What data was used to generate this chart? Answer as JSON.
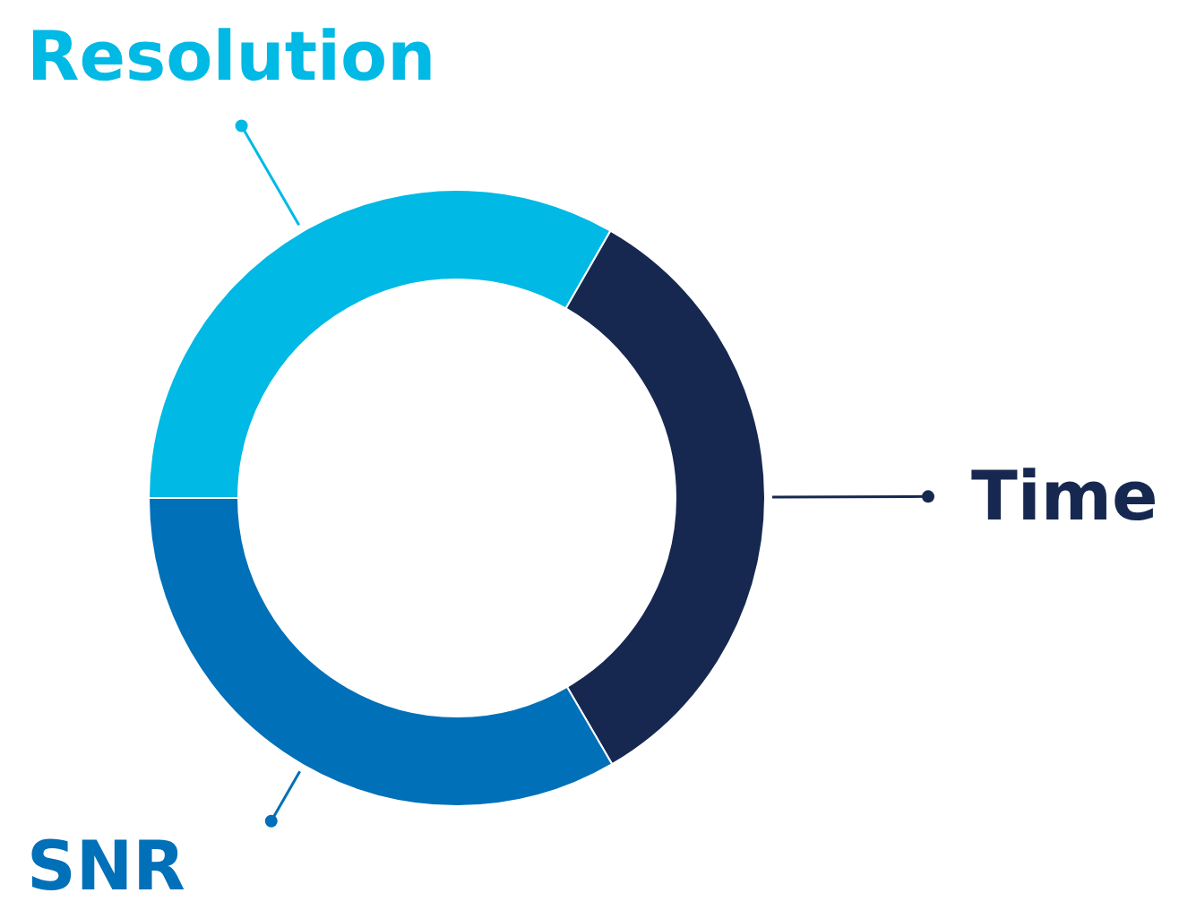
{
  "chart_data": {
    "type": "donut",
    "categories": [
      "Resolution",
      "Time",
      "SNR"
    ],
    "values": [
      33.3,
      33.3,
      33.4
    ],
    "colors": [
      "#00b9e4",
      "#172850",
      "#0070b8"
    ]
  }
}
